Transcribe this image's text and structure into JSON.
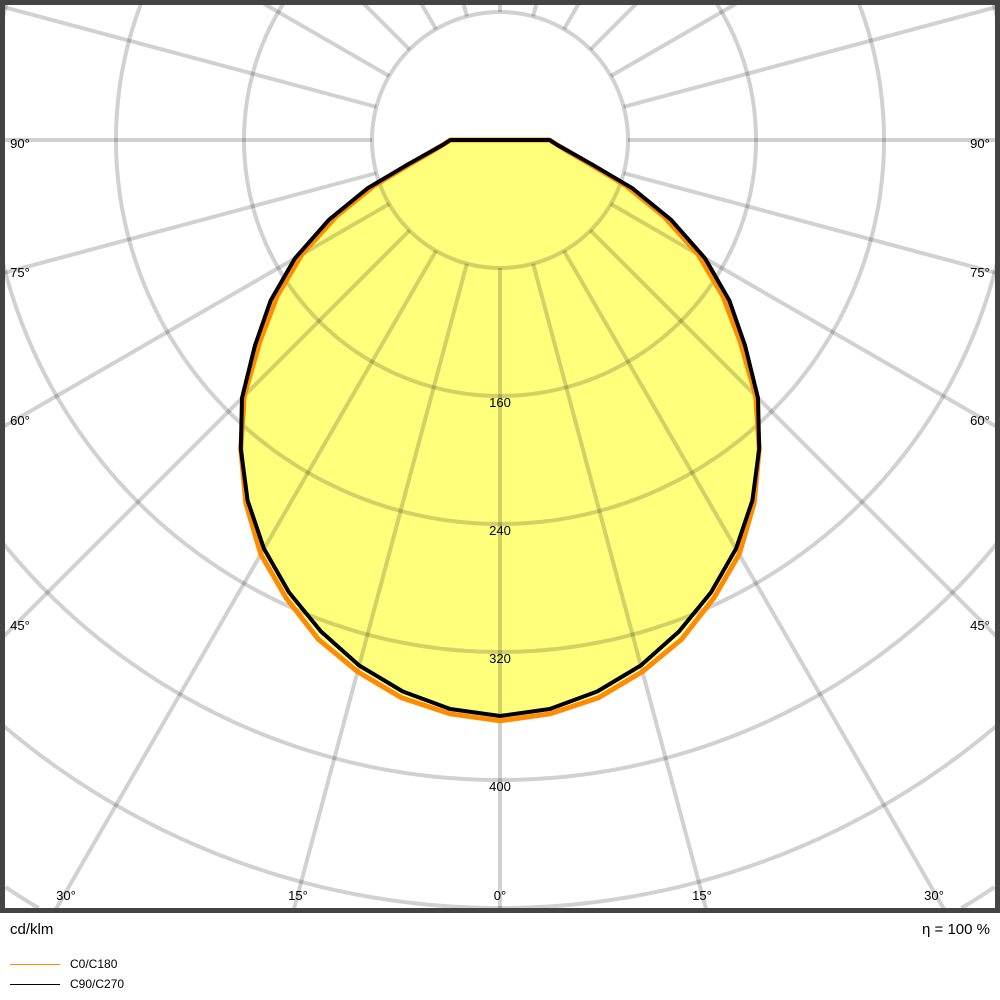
{
  "chart_data": {
    "type": "polar-line",
    "unit_label": "cd/klm",
    "efficiency_label": "η = 100 %",
    "radial_tick_labels": [
      "160",
      "240",
      "320",
      "400"
    ],
    "radial_rings": [
      80,
      160,
      240,
      320,
      400,
      480,
      560,
      640
    ],
    "angular_grid_step_deg": 15,
    "angle_labels": {
      "left": [
        "90°",
        "75°",
        "60°",
        "45°",
        "30°",
        "15°"
      ],
      "center": "0°",
      "right": [
        "15°",
        "30°",
        "45°",
        "60°",
        "75°",
        "90°"
      ]
    },
    "angles_deg": [
      0,
      5,
      10,
      15,
      20,
      25,
      30,
      35,
      40,
      45,
      50,
      55,
      60,
      65,
      70,
      75,
      80,
      85,
      90
    ],
    "series": [
      {
        "name": "C0/C180",
        "color": "#ff8c00",
        "values": [
          363,
          360,
          354,
          344,
          332,
          316,
          299,
          277,
          252,
          226,
          196,
          170,
          143,
          113,
          84,
          58,
          44,
          36,
          31
        ]
      },
      {
        "name": "C90/C270",
        "color": "#000000",
        "values": [
          360,
          357,
          350,
          340,
          327,
          312,
          295,
          275,
          252,
          228,
          200,
          175,
          148,
          118,
          88,
          60,
          45,
          36,
          31
        ]
      }
    ],
    "fill_color": "#ffff66",
    "grid": true,
    "legend_position": "bottom-left"
  }
}
